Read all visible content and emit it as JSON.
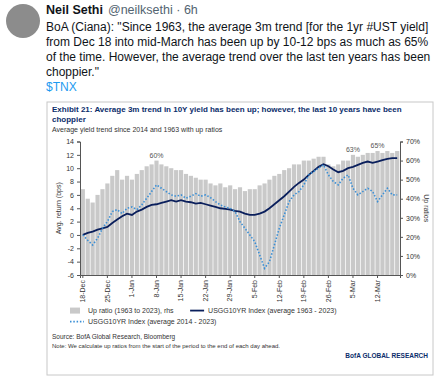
{
  "tweet": {
    "name": "Neil Sethi",
    "handle_line": "@neilksethi · 6h",
    "text": "BoA (Ciana): \"Since 1963, the average 3m trend [for the 1yr #UST yield] from Dec 18 into mid-March has been up by 10-12 bps as much as 65% of the time. However, the average trend over the last ten years has been choppier.\"",
    "cashtag": "$TNX"
  },
  "chart_data": {
    "type": "bar",
    "title": "Exhibit 21: Average 3m trend in 10Y yield has been up; however, the last 10 years have been choppier",
    "subtitle": "Average yield trend since 2014 and 1963 with up ratios",
    "ylabel": "Avg. return (bps)",
    "y2label": "Up ratios",
    "source": "Source: BofA Global Research, Bloomberg",
    "note": "Note: We calculate up ratios from the start of the period to the end of each day ahead.",
    "logo": "BofA GLOBAL RESEARCH",
    "categories": [
      "18-Dec",
      null,
      null,
      null,
      null,
      "25-Dec",
      null,
      null,
      null,
      null,
      "1-Jan",
      null,
      null,
      null,
      null,
      "8-Jan",
      null,
      null,
      null,
      null,
      "15-Jan",
      null,
      null,
      null,
      null,
      "22-Jan",
      null,
      null,
      null,
      null,
      "29-Jan",
      null,
      null,
      null,
      null,
      "5-Feb",
      null,
      null,
      null,
      null,
      "12-Feb",
      null,
      null,
      null,
      null,
      "19-Feb",
      null,
      null,
      null,
      null,
      "26-Feb",
      null,
      null,
      null,
      null,
      "5-Mar",
      null,
      null,
      null,
      null,
      "12-Mar",
      null,
      null,
      null,
      null
    ],
    "ylim": [
      -6,
      14
    ],
    "yticks": [
      -6,
      -4,
      -2,
      0,
      2,
      4,
      6,
      8,
      10,
      12,
      14
    ],
    "y2lim": [
      0,
      70
    ],
    "y2ticks": [
      {
        "value": 0,
        "label": "0%"
      },
      {
        "value": 10,
        "label": "10%"
      },
      {
        "value": 20,
        "label": "20%"
      },
      {
        "value": 30,
        "label": "30%"
      },
      {
        "value": 40,
        "label": "40%"
      },
      {
        "value": 50,
        "label": "50%"
      },
      {
        "value": 60,
        "label": "60%"
      },
      {
        "value": 70,
        "label": "70%"
      }
    ],
    "grid": false,
    "legend": "bottom",
    "series": [
      {
        "name": "Up ratio (1963 to 2023), rhs",
        "type": "bar",
        "axis": "y2",
        "color": "#c9c9c9",
        "values": [
          45,
          40,
          38,
          42,
          45,
          48,
          52,
          55,
          50,
          52,
          50,
          53,
          55,
          57,
          58,
          60,
          58,
          57,
          56,
          55,
          55,
          53,
          52,
          51,
          50,
          50,
          48,
          47,
          48,
          46,
          47,
          45,
          46,
          44,
          45,
          45,
          47,
          48,
          50,
          52,
          53,
          55,
          56,
          58,
          58,
          60,
          60,
          61,
          62,
          62,
          58,
          57,
          58,
          60,
          60,
          63,
          62,
          63,
          64,
          64,
          65,
          64,
          65,
          64,
          65
        ]
      },
      {
        "name": "USGG10YR Index (average 1963 - 2023)",
        "type": "line",
        "color": "#0a1f5c",
        "line_style": "solid",
        "values": [
          0,
          0.3,
          0.5,
          0.8,
          1.0,
          1.2,
          1.8,
          2.3,
          2.8,
          3.2,
          3.0,
          3.5,
          3.8,
          4.2,
          4.5,
          4.6,
          4.8,
          5.0,
          5.2,
          5.0,
          5.2,
          5.0,
          4.9,
          4.7,
          4.8,
          4.6,
          4.4,
          4.2,
          4.0,
          3.9,
          3.8,
          3.6,
          3.5,
          3.2,
          3.0,
          3.0,
          3.2,
          3.5,
          4.0,
          4.6,
          5.2,
          5.8,
          6.5,
          7.2,
          7.8,
          8.3,
          9.0,
          9.6,
          10.2,
          10.6,
          10.3,
          9.8,
          9.4,
          9.6,
          10.0,
          10.2,
          10.5,
          10.8,
          11.0,
          10.8,
          11.0,
          11.2,
          11.4,
          11.5,
          11.5
        ]
      },
      {
        "name": "USGG10YR Index (average 2014 - 2023)",
        "type": "line",
        "color": "#3a8fd6",
        "line_style": "dotted",
        "values": [
          0,
          -0.8,
          -1.5,
          -0.5,
          1.0,
          2.0,
          3.5,
          3.8,
          3.2,
          4.0,
          4.2,
          3.8,
          4.5,
          5.5,
          6.5,
          7.5,
          7.0,
          6.5,
          6.0,
          5.8,
          6.0,
          5.5,
          5.8,
          6.2,
          5.8,
          6.0,
          5.6,
          5.0,
          4.5,
          4.2,
          4.0,
          3.5,
          2.0,
          1.0,
          0.0,
          -1.0,
          -3.0,
          -5.0,
          -4.0,
          -1.5,
          1.0,
          3.0,
          5.0,
          6.0,
          6.5,
          7.5,
          9.0,
          9.5,
          10.0,
          10.5,
          9.0,
          8.0,
          7.5,
          8.5,
          9.0,
          7.0,
          6.0,
          6.5,
          7.0,
          6.5,
          5.0,
          6.0,
          7.0,
          6.0,
          6.0
        ]
      }
    ],
    "annotations": [
      {
        "text": "60%",
        "x": 15,
        "y": 60,
        "axis": "y2"
      },
      {
        "text": "63%",
        "x": 55,
        "y": 63,
        "axis": "y2"
      },
      {
        "text": "65%",
        "x": 60,
        "y": 65,
        "axis": "y2"
      }
    ]
  }
}
